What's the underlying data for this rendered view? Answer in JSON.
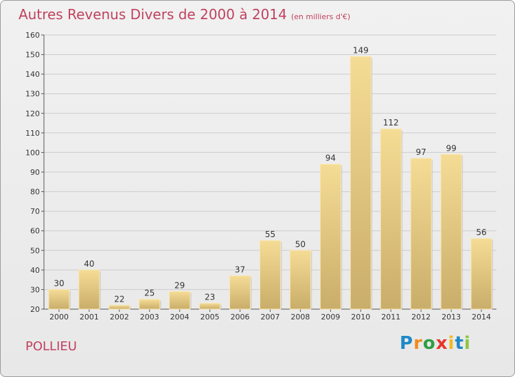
{
  "chart_data": {
    "type": "bar",
    "title": "Autres Revenus Divers de 2000 à 2014",
    "subtitle": "(en milliers d'€)",
    "categories": [
      "2000",
      "2001",
      "2002",
      "2003",
      "2004",
      "2005",
      "2006",
      "2007",
      "2008",
      "2009",
      "2010",
      "2011",
      "2012",
      "2013",
      "2014"
    ],
    "values": [
      30,
      40,
      22,
      25,
      29,
      23,
      37,
      55,
      50,
      94,
      149,
      112,
      97,
      99,
      56
    ],
    "ylim": [
      20,
      160
    ],
    "yticks": [
      20,
      30,
      40,
      50,
      60,
      70,
      80,
      90,
      100,
      110,
      120,
      130,
      140,
      150,
      160
    ],
    "grid": true,
    "legend": "none",
    "bar_color": "#e9cf86"
  },
  "footer": {
    "commune": "POLLIEU",
    "logo_text": "Proxiti"
  },
  "colors": {
    "title": "#c0415e",
    "logo": [
      "#1e88c7",
      "#f28c1e",
      "#2e9e44",
      "#e8342b",
      "#f2b81e",
      "#1e88c7",
      "#8cc63f"
    ]
  }
}
